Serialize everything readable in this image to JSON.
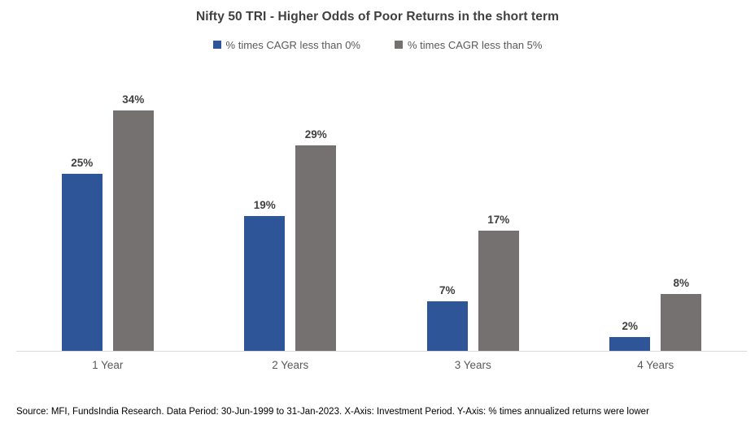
{
  "chart_data": {
    "type": "bar",
    "title": "Nifty 50 TRI - Higher Odds of Poor Returns in the short term",
    "categories": [
      "1 Year",
      "2 Years",
      "3 Years",
      "4 Years"
    ],
    "series": [
      {
        "name": "% times CAGR less than 0%",
        "color": "#2E5597",
        "values": [
          25,
          19,
          7,
          2
        ]
      },
      {
        "name": "% times CAGR less than 5%",
        "color": "#757171",
        "values": [
          34,
          29,
          17,
          8
        ]
      }
    ],
    "value_suffix": "%",
    "ylim": [
      0,
      39
    ],
    "grid": false,
    "legend_position": "top",
    "xlabel": "Investment Period",
    "ylabel": "% times annualized returns were lower"
  },
  "footer": {
    "source_text": "Source: MFI, FundsIndia Research. Data Period: 30-Jun-1999 to 31-Jan-2023. X-Axis: Investment Period. Y-Axis: % times annualized returns were lower"
  }
}
